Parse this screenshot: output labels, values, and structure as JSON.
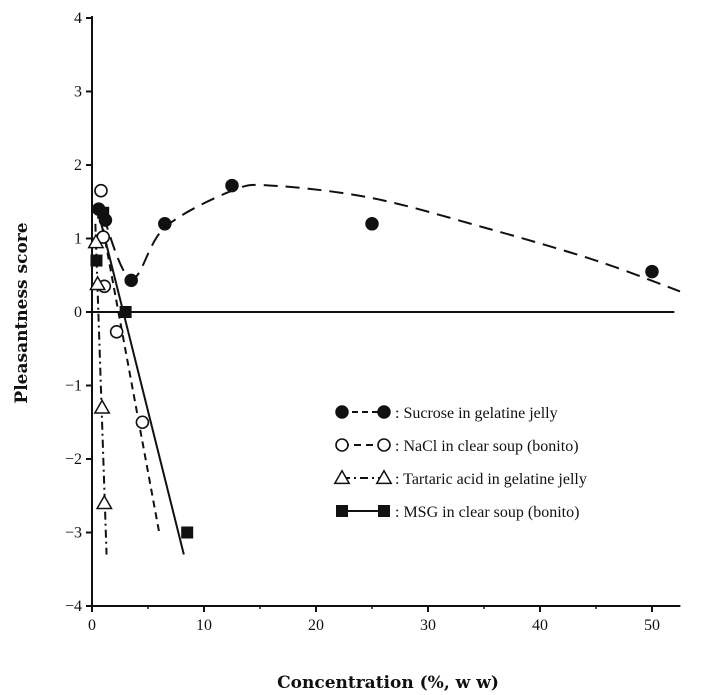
{
  "chart_data": {
    "type": "scatter",
    "title": "",
    "xlabel": "Concentration (%, w w)",
    "ylabel": "Pleasantness score",
    "xlim": [
      0,
      52
    ],
    "ylim": [
      -4,
      4
    ],
    "x_ticks": [
      0,
      10,
      20,
      30,
      40,
      50
    ],
    "y_ticks": [
      -4,
      -3,
      -2,
      -1,
      0,
      1,
      2,
      3,
      4
    ],
    "legend_position": "lower-right",
    "grid": false,
    "series": [
      {
        "name": "Sucrose in gelatine jelly",
        "marker": "filled-circle",
        "line_style": "long-dash",
        "points": [
          [
            0.6,
            1.4
          ],
          [
            1.2,
            1.25
          ],
          [
            3.5,
            0.43
          ],
          [
            6.5,
            1.2
          ],
          [
            12.5,
            1.72
          ],
          [
            25,
            1.2
          ],
          [
            50,
            0.55
          ]
        ],
        "fit_curve": [
          [
            1.0,
            1.3
          ],
          [
            3.5,
            0.45
          ],
          [
            6.5,
            1.15
          ],
          [
            12.5,
            1.65
          ],
          [
            16,
            1.72
          ],
          [
            25,
            1.55
          ],
          [
            35,
            1.15
          ],
          [
            45,
            0.7
          ],
          [
            52.5,
            0.28
          ]
        ]
      },
      {
        "name": "NaCl in clear soup (bonito)",
        "marker": "open-circle",
        "line_style": "short-dash",
        "points": [
          [
            0.8,
            1.65
          ],
          [
            1.0,
            1.02
          ],
          [
            1.1,
            0.35
          ],
          [
            2.2,
            -0.27
          ],
          [
            4.5,
            -1.5
          ]
        ],
        "fit_curve": [
          [
            0.6,
            1.45
          ],
          [
            6.0,
            -3.0
          ]
        ]
      },
      {
        "name": "Tartaric acid in gelatine jelly",
        "marker": "open-triangle",
        "line_style": "dash-dot",
        "points": [
          [
            0.35,
            0.95
          ],
          [
            0.5,
            0.38
          ],
          [
            0.9,
            -1.3
          ],
          [
            1.1,
            -2.6
          ]
        ],
        "fit_curve": [
          [
            0.3,
            1.2
          ],
          [
            1.3,
            -3.3
          ]
        ]
      },
      {
        "name": "MSG in clear soup (bonito)",
        "marker": "filled-square",
        "line_style": "solid",
        "points": [
          [
            0.4,
            0.7
          ],
          [
            1.0,
            1.35
          ],
          [
            3.0,
            0.0
          ],
          [
            8.5,
            -3.0
          ]
        ],
        "fit_curve": [
          [
            0.5,
            1.4
          ],
          [
            8.2,
            -3.3
          ]
        ]
      }
    ]
  },
  "zero_line": {
    "y": 0,
    "x_end": 52
  }
}
